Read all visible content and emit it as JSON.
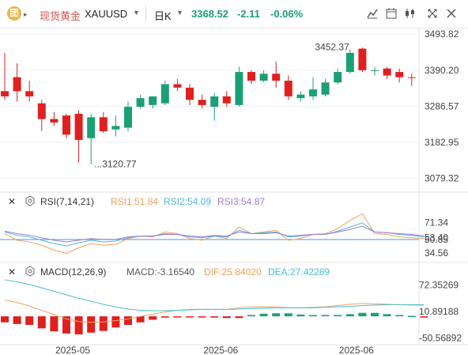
{
  "header": {
    "logo_char": "团",
    "instrument_name": "现货黄金",
    "symbol": "XAUUSD",
    "period": "日K",
    "last_price": "3368.52",
    "change": "-2.11",
    "change_pct": "-0.06%"
  },
  "toolbar": {
    "icons": [
      "candle-style-icon",
      "calendar-icon",
      "indicators-icon",
      "fullscreen-icon",
      "close-icon"
    ]
  },
  "colors": {
    "up": "#1aa074",
    "down": "#e02020",
    "rsi1": "#f0a05a",
    "rsi2": "#4fb6e3",
    "rsi3": "#9e7bd6",
    "macd": "#555555",
    "dif": "#f0a05a",
    "dea": "#44bfcf",
    "ref_line": "#5aa6e8"
  },
  "chart_data": [
    {
      "type": "candlestick",
      "title": "",
      "ylim": [
        3040,
        3510
      ],
      "yticks": [
        "3493.82",
        "3390.20",
        "3286.57",
        "3182.95",
        "3079.32"
      ],
      "xticks": [
        "2025-05",
        "2025-06",
        "2025-06"
      ],
      "annotations": {
        "high_label": "3452.37",
        "low_label": "3120.77"
      },
      "candles": [
        {
          "o": 3330,
          "h": 3440,
          "l": 3305,
          "c": 3315
        },
        {
          "o": 3370,
          "h": 3410,
          "l": 3300,
          "c": 3330
        },
        {
          "o": 3330,
          "h": 3360,
          "l": 3300,
          "c": 3315
        },
        {
          "o": 3295,
          "h": 3305,
          "l": 3215,
          "c": 3250
        },
        {
          "o": 3250,
          "h": 3270,
          "l": 3230,
          "c": 3240
        },
        {
          "o": 3260,
          "h": 3265,
          "l": 3195,
          "c": 3205
        },
        {
          "o": 3265,
          "h": 3275,
          "l": 3125,
          "c": 3190
        },
        {
          "o": 3195,
          "h": 3265,
          "l": 3120,
          "c": 3255
        },
        {
          "o": 3255,
          "h": 3270,
          "l": 3210,
          "c": 3215
        },
        {
          "o": 3220,
          "h": 3260,
          "l": 3200,
          "c": 3230
        },
        {
          "o": 3225,
          "h": 3300,
          "l": 3215,
          "c": 3285
        },
        {
          "o": 3285,
          "h": 3320,
          "l": 3280,
          "c": 3310
        },
        {
          "o": 3290,
          "h": 3315,
          "l": 3280,
          "c": 3315
        },
        {
          "o": 3295,
          "h": 3360,
          "l": 3290,
          "c": 3350
        },
        {
          "o": 3350,
          "h": 3365,
          "l": 3330,
          "c": 3340
        },
        {
          "o": 3340,
          "h": 3350,
          "l": 3290,
          "c": 3305
        },
        {
          "o": 3305,
          "h": 3320,
          "l": 3280,
          "c": 3290
        },
        {
          "o": 3285,
          "h": 3325,
          "l": 3245,
          "c": 3315
        },
        {
          "o": 3315,
          "h": 3330,
          "l": 3285,
          "c": 3295
        },
        {
          "o": 3290,
          "h": 3400,
          "l": 3285,
          "c": 3385
        },
        {
          "o": 3385,
          "h": 3390,
          "l": 3350,
          "c": 3360
        },
        {
          "o": 3360,
          "h": 3390,
          "l": 3355,
          "c": 3380
        },
        {
          "o": 3380,
          "h": 3415,
          "l": 3340,
          "c": 3360
        },
        {
          "o": 3360,
          "h": 3375,
          "l": 3305,
          "c": 3315
        },
        {
          "o": 3310,
          "h": 3330,
          "l": 3300,
          "c": 3320
        },
        {
          "o": 3315,
          "h": 3370,
          "l": 3305,
          "c": 3335
        },
        {
          "o": 3320,
          "h": 3365,
          "l": 3315,
          "c": 3355
        },
        {
          "o": 3355,
          "h": 3395,
          "l": 3350,
          "c": 3385
        },
        {
          "o": 3385,
          "h": 3450,
          "l": 3380,
          "c": 3440
        },
        {
          "o": 3452,
          "h": 3455,
          "l": 3385,
          "c": 3390
        },
        {
          "o": 3390,
          "h": 3400,
          "l": 3375,
          "c": 3390
        },
        {
          "o": 3395,
          "h": 3400,
          "l": 3365,
          "c": 3375
        },
        {
          "o": 3385,
          "h": 3395,
          "l": 3355,
          "c": 3370
        },
        {
          "o": 3370,
          "h": 3380,
          "l": 3345,
          "c": 3368
        }
      ]
    },
    {
      "type": "line",
      "title": "RSI(7,14,21)",
      "legend": [
        "RSI1:51.84",
        "RSI2:54.09",
        "RSI3:54.87"
      ],
      "ylim": [
        25,
        90
      ],
      "yticks": [
        "71.34",
        "53.40",
        "50.85",
        "34.56"
      ],
      "reference": 50.85,
      "series": [
        {
          "name": "RSI1",
          "values": [
            58,
            50,
            48,
            44,
            38,
            34,
            41,
            46,
            44,
            45,
            52,
            55,
            54,
            60,
            58,
            52,
            50,
            55,
            52,
            66,
            58,
            60,
            62,
            50,
            52,
            57,
            58,
            64,
            74,
            82,
            58,
            57,
            54,
            53,
            52
          ]
        },
        {
          "name": "RSI2",
          "values": [
            60,
            56,
            54,
            50,
            46,
            43,
            47,
            50,
            48,
            49,
            53,
            55,
            55,
            58,
            57,
            54,
            53,
            55,
            54,
            62,
            58,
            59,
            60,
            54,
            55,
            57,
            57,
            61,
            66,
            71,
            60,
            59,
            57,
            56,
            54
          ]
        },
        {
          "name": "RSI3",
          "values": [
            61,
            58,
            56,
            53,
            50,
            48,
            50,
            52,
            51,
            51,
            54,
            55,
            55,
            57,
            57,
            55,
            54,
            56,
            55,
            60,
            58,
            58,
            59,
            55,
            56,
            57,
            57,
            60,
            63,
            67,
            60,
            59,
            58,
            57,
            55
          ]
        }
      ]
    },
    {
      "type": "bar+line",
      "title": "MACD(12,26,9)",
      "legend": [
        "MACD:-3.16540",
        "DIF:25.84020",
        "DEA:27.42289"
      ],
      "ylim": [
        -66,
        92
      ],
      "yticks": [
        "72.35269",
        "10.89188",
        "-50.56892"
      ],
      "histogram": [
        -14,
        -18,
        -20,
        -28,
        -35,
        -40,
        -42,
        -38,
        -34,
        -26,
        -20,
        -14,
        -8,
        -3,
        -2,
        -2,
        -2,
        -3,
        -4,
        -4,
        3,
        6,
        7,
        7,
        4,
        3,
        3,
        3,
        5,
        8,
        8,
        5,
        3,
        1,
        -3
      ],
      "series": [
        {
          "name": "DIF",
          "values": [
            38,
            32,
            24,
            14,
            4,
            -6,
            -12,
            -14,
            -13,
            -10,
            -6,
            0,
            5,
            10,
            14,
            16,
            16,
            16,
            16,
            20,
            22,
            22,
            22,
            20,
            20,
            21,
            22,
            25,
            28,
            30,
            29,
            28,
            27,
            26,
            26
          ]
        },
        {
          "name": "DEA",
          "values": [
            85,
            80,
            74,
            66,
            58,
            50,
            42,
            35,
            28,
            22,
            17,
            14,
            13,
            13,
            14,
            15,
            16,
            16,
            16,
            17,
            18,
            19,
            20,
            20,
            20,
            20,
            21,
            22,
            23,
            25,
            26,
            27,
            27,
            27,
            27
          ]
        }
      ]
    }
  ]
}
